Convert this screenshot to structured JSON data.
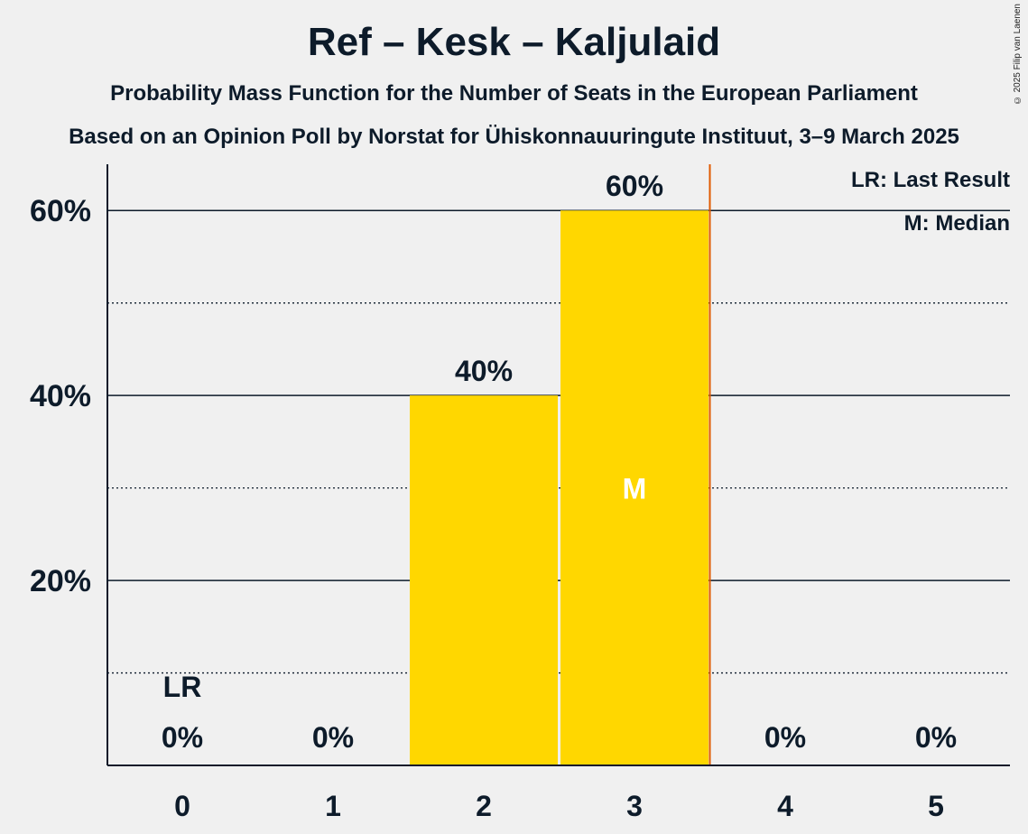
{
  "title": "Ref – Kesk – Kaljulaid",
  "subtitle_1": "Probability Mass Function for the Number of Seats in the European Parliament",
  "subtitle_2": "Based on an Opinion Poll by Norstat for Ühiskonnauuringute Instituut, 3–9 March 2025",
  "copyright": "© 2025 Filip van Laenen",
  "legend": {
    "last_result": "LR: Last Result",
    "median": "M: Median"
  },
  "colors": {
    "bar": "#FFD700",
    "median_line": "#E05A00",
    "axis": "#0d1b2a",
    "background": "#f0f0f0"
  },
  "chart_data": {
    "type": "bar",
    "categories": [
      "0",
      "1",
      "2",
      "3",
      "4",
      "5"
    ],
    "values": [
      0,
      0,
      40,
      60,
      0,
      0
    ],
    "value_labels": [
      "0%",
      "0%",
      "40%",
      "60%",
      "0%",
      "0%"
    ],
    "ylim": [
      0,
      65
    ],
    "yticks": [
      20,
      40,
      60
    ],
    "ytick_labels": [
      "20%",
      "40%",
      "60%"
    ],
    "minor_gridlines": [
      10,
      30,
      50
    ],
    "last_result_seat": "0",
    "last_result_label": "LR",
    "median_seat": "3",
    "median_label": "M"
  }
}
